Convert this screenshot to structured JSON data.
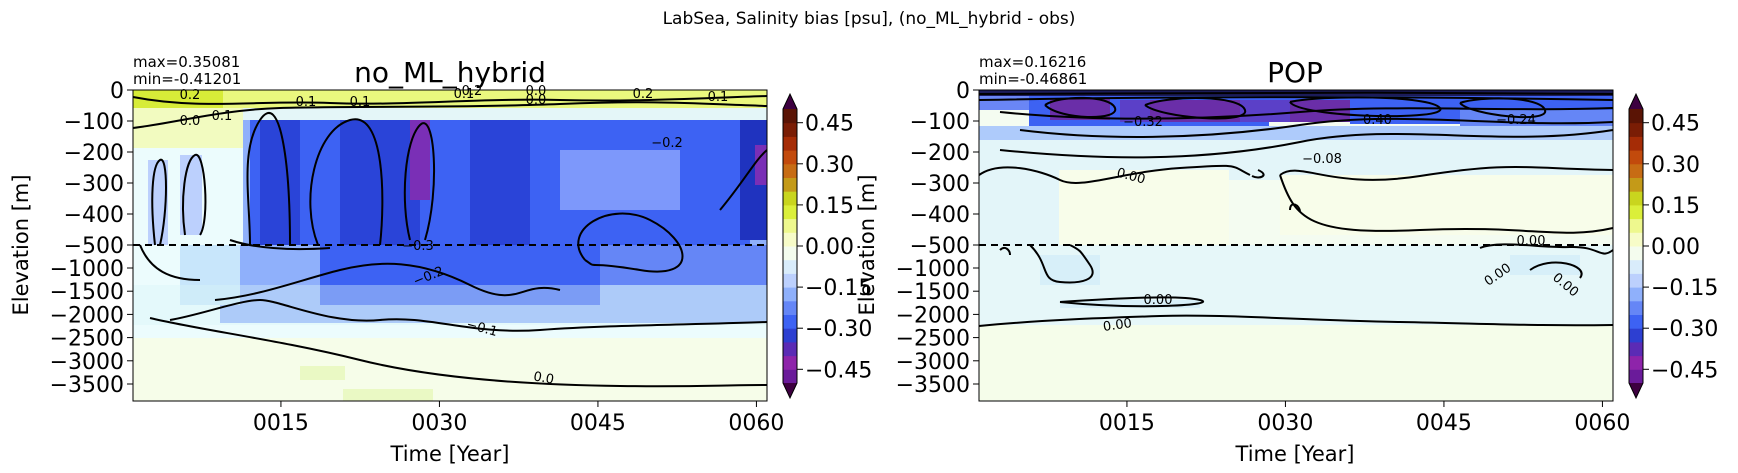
{
  "figure": {
    "suptitle": "LabSea, Salinity bias [psu], (no_ML_hybrid - obs)"
  },
  "chart_data": [
    {
      "type": "heatmap",
      "title": "no_ML_hybrid",
      "stats": {
        "max": "max=0.35081",
        "min": "min=-0.41201"
      },
      "xlabel": "Time [Year]",
      "ylabel": "Elevation [m]",
      "xlim": [
        1,
        61
      ],
      "x_tick_values": [
        15,
        30,
        45,
        60
      ],
      "x_tick_labels": [
        "0015",
        "0030",
        "0045",
        "0060"
      ],
      "upper_y_ticks": [
        "0",
        "−100",
        "−200",
        "−300",
        "−400",
        "−500"
      ],
      "lower_y_ticks": [
        "−1000",
        "−1500",
        "−2000",
        "−2500",
        "−3000",
        "−3500"
      ],
      "reference_line_depth": -500,
      "contour_labels": [
        "0.2",
        "0.1",
        "0.0",
        "0.1",
        "0.1",
        "0.1",
        "0.0",
        "0.2",
        "0.1",
        "0.2",
        "0.0",
        "−0.2",
        "−0.3",
        "−0.2",
        "−0.1",
        "0.0"
      ],
      "colorbar": {
        "vmin": -0.5,
        "vmax": 0.5,
        "ticks": [
          "0.45",
          "0.30",
          "0.15",
          "0.00",
          "−0.15",
          "−0.30",
          "−0.45"
        ]
      }
    },
    {
      "type": "heatmap",
      "title": "POP",
      "stats": {
        "max": "max=0.16216",
        "min": "min=-0.46861"
      },
      "xlabel": "Time [Year]",
      "ylabel": "Elevation [m]",
      "xlim": [
        1,
        61
      ],
      "x_tick_values": [
        15,
        30,
        45,
        60
      ],
      "x_tick_labels": [
        "0015",
        "0030",
        "0045",
        "0060"
      ],
      "upper_y_ticks": [
        "0",
        "−100",
        "−200",
        "−300",
        "−400",
        "−500"
      ],
      "lower_y_ticks": [
        "−1000",
        "−1500",
        "−2000",
        "−2500",
        "−3000",
        "−3500"
      ],
      "reference_line_depth": -500,
      "contour_labels": [
        "−0.32",
        "−0.40",
        "−0.24",
        "−0.08",
        "0.00",
        "0.00",
        "0.00",
        "0.00",
        "0.00",
        "0.00"
      ],
      "colorbar": {
        "vmin": -0.5,
        "vmax": 0.5,
        "ticks": [
          "0.45",
          "0.30",
          "0.15",
          "0.00",
          "−0.15",
          "−0.30",
          "−0.45"
        ]
      }
    }
  ]
}
